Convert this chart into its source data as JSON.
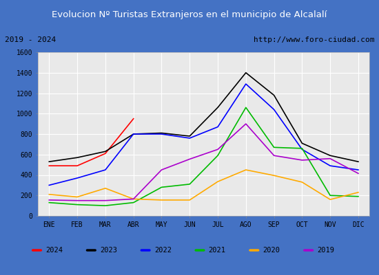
{
  "title": "Evolucion Nº Turistas Extranjeros en el municipio de Alcalalí",
  "subtitle_left": "2019 - 2024",
  "subtitle_right": "http://www.foro-ciudad.com",
  "months": [
    "ENE",
    "FEB",
    "MAR",
    "ABR",
    "MAY",
    "JUN",
    "JUL",
    "AGO",
    "SEP",
    "OCT",
    "NOV",
    "DIC"
  ],
  "series": {
    "2024": {
      "color": "#ff0000",
      "data": [
        490,
        490,
        610,
        950,
        null,
        null,
        null,
        null,
        null,
        null,
        null,
        null
      ]
    },
    "2023": {
      "color": "#000000",
      "data": [
        530,
        570,
        630,
        800,
        810,
        780,
        1060,
        1400,
        1180,
        710,
        590,
        530
      ]
    },
    "2022": {
      "color": "#0000ff",
      "data": [
        300,
        370,
        450,
        800,
        800,
        760,
        870,
        1290,
        1040,
        650,
        490,
        450
      ]
    },
    "2021": {
      "color": "#00bb00",
      "data": [
        130,
        110,
        100,
        130,
        280,
        310,
        590,
        1060,
        670,
        660,
        200,
        190
      ]
    },
    "2020": {
      "color": "#ffaa00",
      "data": [
        210,
        185,
        270,
        165,
        155,
        155,
        335,
        450,
        395,
        330,
        160,
        230
      ]
    },
    "2019": {
      "color": "#aa00cc",
      "data": [
        155,
        150,
        150,
        165,
        450,
        555,
        650,
        900,
        590,
        545,
        560,
        415
      ]
    }
  },
  "ylim": [
    0,
    1600
  ],
  "yticks": [
    0,
    200,
    400,
    600,
    800,
    1000,
    1200,
    1400,
    1600
  ],
  "title_bg_color": "#4472c4",
  "title_font_color": "#ffffff",
  "plot_bg_color": "#e9e9e9",
  "grid_color": "#ffffff",
  "outer_bg_color": "#4472c4",
  "legend_order": [
    "2024",
    "2023",
    "2022",
    "2021",
    "2020",
    "2019"
  ]
}
